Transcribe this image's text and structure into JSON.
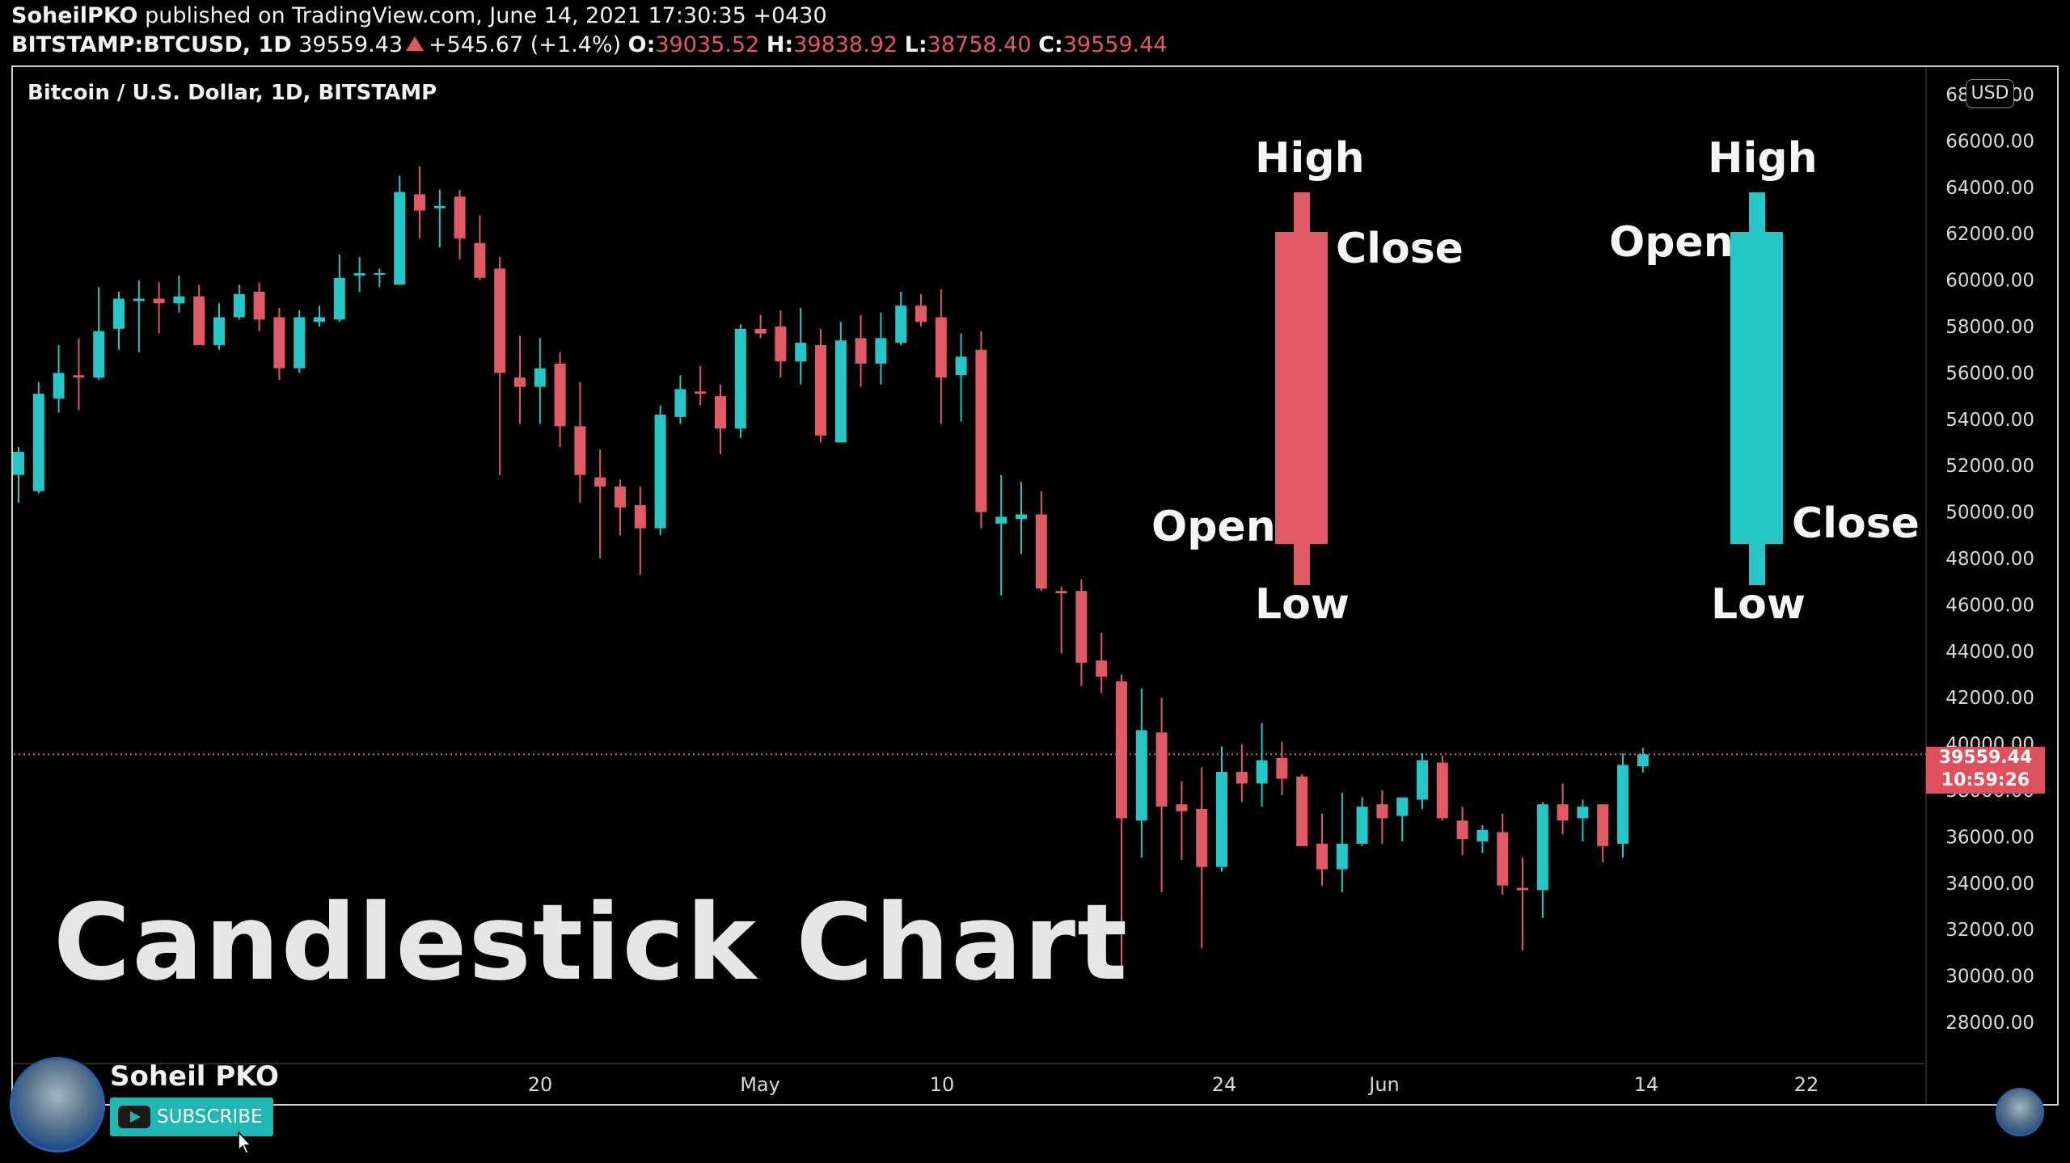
{
  "header": {
    "publisher": "SoheilPKO",
    "published_text": "published on TradingView.com, June 14, 2021 17:30:35 +0430",
    "symbol": "BITSTAMP:BTCUSD, 1D",
    "last": "39559.43",
    "change": "+545.67 (+1.4%)",
    "o_label": "O:",
    "o_value": "39035.52",
    "h_label": "H:",
    "h_value": "39838.92",
    "l_label": "L:",
    "l_value": "38758.40",
    "c_label": "C:",
    "c_value": "39559.44"
  },
  "chart_title": "Bitcoin / U.S. Dollar, 1D, BITSTAMP",
  "currency_tag": "USD",
  "price_tag": {
    "price": "39559.44",
    "countdown": "10:59:26"
  },
  "overlay_title": "Candlestick Chart",
  "bearish_example": {
    "high": "High",
    "close": "Close",
    "open": "Open",
    "low": "Low"
  },
  "bullish_example": {
    "high": "High",
    "open": "Open",
    "close": "Close",
    "low": "Low"
  },
  "channel": {
    "name": "Soheil PKO",
    "subscribe_label": "SUBSCRIBE"
  },
  "colors": {
    "up": "#26c6c6",
    "down": "#e05a66",
    "background": "#000000"
  },
  "chart_data": {
    "type": "candlestick",
    "y_ticks": [
      "68000.00",
      "66000.00",
      "64000.00",
      "62000.00",
      "60000.00",
      "58000.00",
      "56000.00",
      "54000.00",
      "52000.00",
      "50000.00",
      "48000.00",
      "46000.00",
      "44000.00",
      "42000.00",
      "40000.00",
      "38000.00",
      "36000.00",
      "34000.00",
      "32000.00",
      "30000.00",
      "28000.00"
    ],
    "x_ticks": [
      "20",
      "May",
      "10",
      "24",
      "Jun",
      "14",
      "22"
    ],
    "ylim": [
      27000,
      69000
    ],
    "last_price": 39559.44,
    "candles": [
      {
        "o": 51600,
        "h": 52800,
        "l": 50400,
        "c": 52600
      },
      {
        "o": 50900,
        "h": 55600,
        "l": 50800,
        "c": 55100
      },
      {
        "o": 54900,
        "h": 57200,
        "l": 54300,
        "c": 56000
      },
      {
        "o": 55900,
        "h": 57500,
        "l": 54400,
        "c": 55800
      },
      {
        "o": 55800,
        "h": 59700,
        "l": 55700,
        "c": 57800
      },
      {
        "o": 57900,
        "h": 59500,
        "l": 57000,
        "c": 59200
      },
      {
        "o": 59100,
        "h": 60000,
        "l": 56900,
        "c": 59200
      },
      {
        "o": 59200,
        "h": 59900,
        "l": 57700,
        "c": 59000
      },
      {
        "o": 59000,
        "h": 60200,
        "l": 58600,
        "c": 59300
      },
      {
        "o": 59300,
        "h": 59800,
        "l": 57300,
        "c": 57200
      },
      {
        "o": 57200,
        "h": 59000,
        "l": 57000,
        "c": 58400
      },
      {
        "o": 58400,
        "h": 59800,
        "l": 58300,
        "c": 59400
      },
      {
        "o": 59500,
        "h": 59900,
        "l": 57800,
        "c": 58300
      },
      {
        "o": 58400,
        "h": 58800,
        "l": 55700,
        "c": 56200
      },
      {
        "o": 56200,
        "h": 58700,
        "l": 56000,
        "c": 58400
      },
      {
        "o": 58200,
        "h": 58900,
        "l": 58000,
        "c": 58400
      },
      {
        "o": 58300,
        "h": 61100,
        "l": 58200,
        "c": 60100
      },
      {
        "o": 60200,
        "h": 61000,
        "l": 59500,
        "c": 60300
      },
      {
        "o": 60300,
        "h": 60500,
        "l": 59700,
        "c": 60300
      },
      {
        "o": 59800,
        "h": 64500,
        "l": 59800,
        "c": 63800
      },
      {
        "o": 63700,
        "h": 64900,
        "l": 61800,
        "c": 63000
      },
      {
        "o": 63100,
        "h": 63900,
        "l": 61400,
        "c": 63200
      },
      {
        "o": 63600,
        "h": 63900,
        "l": 60900,
        "c": 61800
      },
      {
        "o": 61600,
        "h": 62800,
        "l": 60000,
        "c": 60100
      },
      {
        "o": 60500,
        "h": 61000,
        "l": 51600,
        "c": 56000
      },
      {
        "o": 55800,
        "h": 57600,
        "l": 53800,
        "c": 55400
      },
      {
        "o": 55400,
        "h": 57500,
        "l": 53800,
        "c": 56200
      },
      {
        "o": 56400,
        "h": 56900,
        "l": 52800,
        "c": 53700
      },
      {
        "o": 53700,
        "h": 55600,
        "l": 50400,
        "c": 51600
      },
      {
        "o": 51500,
        "h": 52700,
        "l": 48000,
        "c": 51100
      },
      {
        "o": 51100,
        "h": 51400,
        "l": 49000,
        "c": 50200
      },
      {
        "o": 50300,
        "h": 51100,
        "l": 47300,
        "c": 49300
      },
      {
        "o": 49300,
        "h": 54600,
        "l": 49000,
        "c": 54200
      },
      {
        "o": 54100,
        "h": 55900,
        "l": 53800,
        "c": 55300
      },
      {
        "o": 55200,
        "h": 56300,
        "l": 54600,
        "c": 55100
      },
      {
        "o": 55000,
        "h": 55500,
        "l": 52500,
        "c": 53600
      },
      {
        "o": 53600,
        "h": 58100,
        "l": 53200,
        "c": 57900
      },
      {
        "o": 57900,
        "h": 58500,
        "l": 57500,
        "c": 57700
      },
      {
        "o": 58000,
        "h": 58700,
        "l": 55800,
        "c": 56500
      },
      {
        "o": 56500,
        "h": 58800,
        "l": 55500,
        "c": 57300
      },
      {
        "o": 57200,
        "h": 57900,
        "l": 53000,
        "c": 53300
      },
      {
        "o": 53000,
        "h": 58200,
        "l": 53100,
        "c": 57400
      },
      {
        "o": 57500,
        "h": 58500,
        "l": 55400,
        "c": 56400
      },
      {
        "o": 56400,
        "h": 58600,
        "l": 55500,
        "c": 57500
      },
      {
        "o": 57300,
        "h": 59500,
        "l": 57200,
        "c": 58900
      },
      {
        "o": 58900,
        "h": 59400,
        "l": 58000,
        "c": 58200
      },
      {
        "o": 58400,
        "h": 59600,
        "l": 53800,
        "c": 55800
      },
      {
        "o": 55900,
        "h": 57700,
        "l": 53900,
        "c": 56700
      },
      {
        "o": 57000,
        "h": 57800,
        "l": 49300,
        "c": 50000
      },
      {
        "o": 49500,
        "h": 51600,
        "l": 46400,
        "c": 49800
      },
      {
        "o": 49700,
        "h": 51300,
        "l": 48200,
        "c": 49900
      },
      {
        "o": 49900,
        "h": 50900,
        "l": 46600,
        "c": 46700
      },
      {
        "o": 46600,
        "h": 46800,
        "l": 43900,
        "c": 46500
      },
      {
        "o": 46600,
        "h": 47100,
        "l": 42500,
        "c": 43500
      },
      {
        "o": 43600,
        "h": 44800,
        "l": 42200,
        "c": 42900
      },
      {
        "o": 42700,
        "h": 43000,
        "l": 30100,
        "c": 36800
      },
      {
        "o": 36700,
        "h": 42400,
        "l": 35100,
        "c": 40600
      },
      {
        "o": 40500,
        "h": 42000,
        "l": 33600,
        "c": 37300
      },
      {
        "o": 37400,
        "h": 38400,
        "l": 35000,
        "c": 37100
      },
      {
        "o": 37200,
        "h": 39000,
        "l": 31200,
        "c": 34700
      },
      {
        "o": 34700,
        "h": 39900,
        "l": 34500,
        "c": 38800
      },
      {
        "o": 38800,
        "h": 40000,
        "l": 37500,
        "c": 38300
      },
      {
        "o": 38300,
        "h": 40900,
        "l": 37300,
        "c": 39300
      },
      {
        "o": 39400,
        "h": 40100,
        "l": 37800,
        "c": 38500
      },
      {
        "o": 38600,
        "h": 38700,
        "l": 35800,
        "c": 35600
      },
      {
        "o": 35700,
        "h": 37000,
        "l": 33900,
        "c": 34600
      },
      {
        "o": 34600,
        "h": 37900,
        "l": 33600,
        "c": 35700
      },
      {
        "o": 35700,
        "h": 37700,
        "l": 35600,
        "c": 37300
      },
      {
        "o": 37400,
        "h": 38000,
        "l": 35700,
        "c": 36800
      },
      {
        "o": 36900,
        "h": 37600,
        "l": 35800,
        "c": 37700
      },
      {
        "o": 37600,
        "h": 39600,
        "l": 37200,
        "c": 39300
      },
      {
        "o": 39200,
        "h": 39500,
        "l": 36700,
        "c": 36800
      },
      {
        "o": 36700,
        "h": 37300,
        "l": 35200,
        "c": 35900
      },
      {
        "o": 35800,
        "h": 36500,
        "l": 35300,
        "c": 36300
      },
      {
        "o": 36200,
        "h": 37000,
        "l": 33500,
        "c": 33900
      },
      {
        "o": 33800,
        "h": 35100,
        "l": 31100,
        "c": 33700
      },
      {
        "o": 33700,
        "h": 37500,
        "l": 32500,
        "c": 37400
      },
      {
        "o": 37400,
        "h": 38300,
        "l": 36100,
        "c": 36700
      },
      {
        "o": 36800,
        "h": 37600,
        "l": 35800,
        "c": 37300
      },
      {
        "o": 37400,
        "h": 37400,
        "l": 34900,
        "c": 35600
      },
      {
        "o": 35700,
        "h": 39600,
        "l": 35100,
        "c": 39100
      },
      {
        "o": 39035.52,
        "h": 39838.92,
        "l": 38758.4,
        "c": 39559.44
      }
    ]
  }
}
